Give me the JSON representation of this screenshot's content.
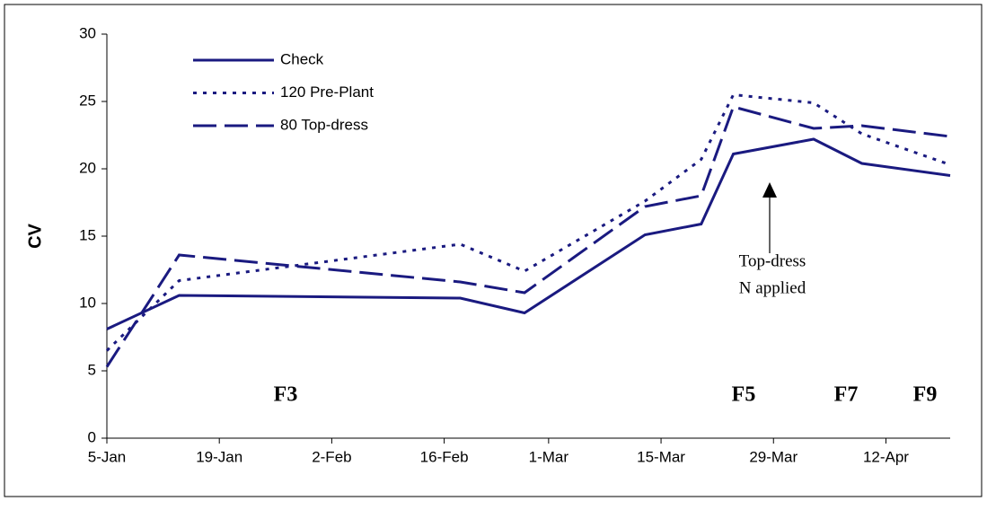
{
  "chart_data": {
    "type": "line",
    "y_label": "CV",
    "x": [
      "5-Jan",
      "14-Jan",
      "18-Feb",
      "26-Feb",
      "13-Mar",
      "20-Mar",
      "24-Mar",
      "3-Apr",
      "9-Apr",
      "20-Apr"
    ],
    "series": [
      {
        "name": "Check",
        "color": "#1a1a80",
        "style": "solid",
        "values": [
          8.1,
          10.6,
          10.4,
          9.3,
          15.1,
          15.9,
          21.1,
          22.2,
          20.4,
          19.5
        ]
      },
      {
        "name": "120 Pre-Plant",
        "color": "#1a1a80",
        "style": "dotted",
        "values": [
          6.5,
          11.7,
          14.4,
          12.4,
          17.6,
          20.7,
          25.5,
          24.9,
          22.6,
          20.3
        ]
      },
      {
        "name": "80 Top-dress",
        "color": "#1a1a80",
        "style": "dashed",
        "values": [
          5.3,
          13.6,
          11.6,
          10.8,
          17.2,
          18.0,
          24.6,
          23.0,
          23.2,
          22.4
        ]
      }
    ],
    "xlim": [
      "5-Jan",
      "20-Apr"
    ],
    "xticks": [
      "5-Jan",
      "19-Jan",
      "2-Feb",
      "16-Feb",
      "1-Mar",
      "15-Mar",
      "29-Mar",
      "12-Apr"
    ],
    "ylim": [
      0,
      30
    ],
    "yticks": [
      0,
      5,
      10,
      15,
      20,
      25,
      30
    ],
    "grid": false,
    "annotation_lines": [
      "Top-dress",
      "N applied"
    ],
    "stages": [
      "F3",
      "F5",
      "F7",
      "F9"
    ]
  }
}
